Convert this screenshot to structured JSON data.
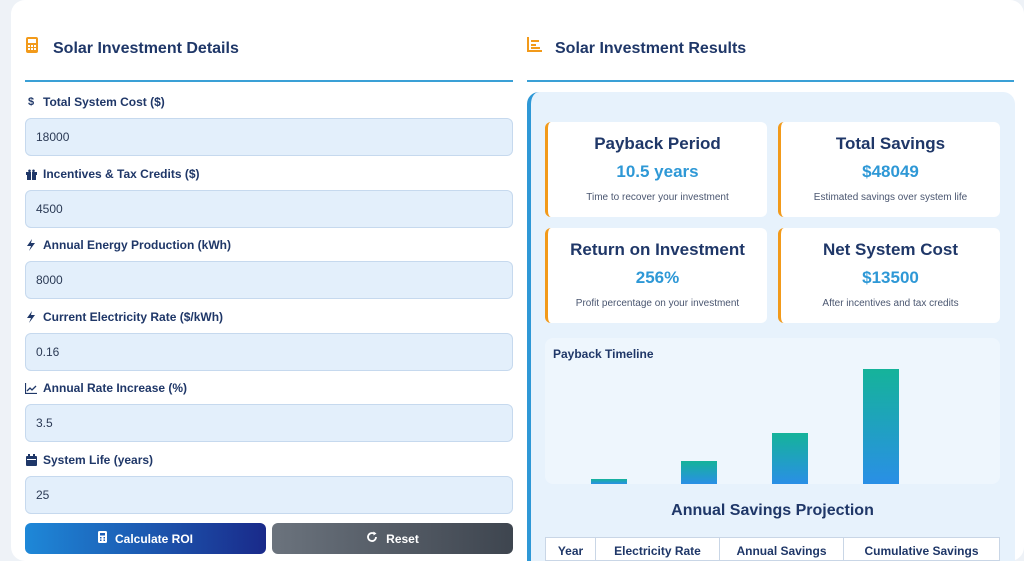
{
  "left": {
    "title": "Solar Investment Details",
    "icon": "calculator-icon",
    "fields": [
      {
        "label": "Total System Cost ($)",
        "value": "18000",
        "icon": "dollar-icon"
      },
      {
        "label": "Incentives & Tax Credits ($)",
        "value": "4500",
        "icon": "gift-icon"
      },
      {
        "label": "Annual Energy Production (kWh)",
        "value": "8000",
        "icon": "bolt-icon"
      },
      {
        "label": "Current Electricity Rate ($/kWh)",
        "value": "0.16",
        "icon": "bolt-icon"
      },
      {
        "label": "Annual Rate Increase (%)",
        "value": "3.5",
        "icon": "line-chart-icon"
      },
      {
        "label": "System Life (years)",
        "value": "25",
        "icon": "calendar-icon"
      }
    ],
    "calculate_label": "Calculate ROI",
    "reset_label": "Reset"
  },
  "right": {
    "title": "Solar Investment Results",
    "icon": "bar-chart-icon",
    "stats": [
      {
        "title": "Payback Period",
        "value": "10.5 years",
        "desc": "Time to recover your investment"
      },
      {
        "title": "Total Savings",
        "value": "$48049",
        "desc": "Estimated savings over system life"
      },
      {
        "title": "Return on Investment",
        "value": "256%",
        "desc": "Profit percentage on your investment"
      },
      {
        "title": "Net System Cost",
        "value": "$13500",
        "desc": "After incentives and tax credits"
      }
    ],
    "timeline_title": "Payback Timeline",
    "projection_title": "Annual Savings Projection",
    "table_headers": [
      "Year",
      "Electricity Rate",
      "Annual Savings",
      "Cumulative Savings"
    ]
  },
  "colors": {
    "accent": "#2e98d6",
    "warning": "#f29a1a",
    "primary": "#1f3768"
  },
  "chart_data": {
    "type": "bar",
    "title": "Payback Timeline",
    "values": [
      4,
      20,
      44,
      100
    ]
  }
}
